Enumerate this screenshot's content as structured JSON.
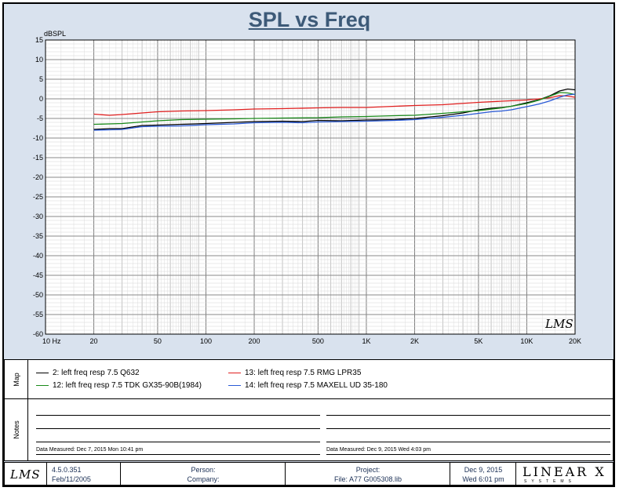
{
  "chart_data": {
    "type": "line",
    "title": "SPL vs Freq",
    "ylabel": "dBSPL",
    "xlabel": "",
    "x_scale": "log",
    "xlim": [
      10,
      20000
    ],
    "ylim": [
      -60,
      15
    ],
    "grid": true,
    "y_ticks": [
      "15",
      "10",
      "5",
      "0",
      "-5",
      "-10",
      "-15",
      "-20",
      "-25",
      "-30",
      "-35",
      "-40",
      "-45",
      "-50",
      "-55",
      "-60"
    ],
    "x_ticks": [
      {
        "value": 10,
        "label": "10  Hz"
      },
      {
        "value": 20,
        "label": "20"
      },
      {
        "value": 50,
        "label": "50"
      },
      {
        "value": 100,
        "label": "100"
      },
      {
        "value": 200,
        "label": "200"
      },
      {
        "value": 500,
        "label": "500"
      },
      {
        "value": 1000,
        "label": "1K"
      },
      {
        "value": 2000,
        "label": "2K"
      },
      {
        "value": 5000,
        "label": "5K"
      },
      {
        "value": 10000,
        "label": "10K"
      },
      {
        "value": 20000,
        "label": "20K"
      }
    ],
    "watermark": "LMS",
    "series": [
      {
        "name": "2: left freq resp 7.5  Q632",
        "color": "#000000",
        "x": [
          20,
          25,
          30,
          40,
          50,
          70,
          100,
          150,
          200,
          300,
          400,
          500,
          700,
          1000,
          1500,
          2000,
          3000,
          4000,
          5000,
          6000,
          7000,
          8000,
          10000,
          12000,
          14000,
          16000,
          18000,
          20000
        ],
        "y": [
          -7.8,
          -7.6,
          -7.6,
          -6.8,
          -6.7,
          -6.5,
          -6.3,
          -6.0,
          -5.8,
          -5.7,
          -5.8,
          -5.5,
          -5.6,
          -5.4,
          -5.3,
          -5.0,
          -4.3,
          -3.6,
          -2.8,
          -2.4,
          -2.2,
          -1.9,
          -1.0,
          -0.2,
          0.8,
          2.0,
          2.5,
          2.3
        ]
      },
      {
        "name": "13: left freq resp 7.5  RMG LPR35",
        "color": "#e02020",
        "x": [
          20,
          25,
          30,
          40,
          50,
          70,
          100,
          150,
          200,
          300,
          500,
          700,
          1000,
          1500,
          2000,
          3000,
          5000,
          7000,
          10000,
          12000,
          14000,
          16000,
          18000,
          20000
        ],
        "y": [
          -3.9,
          -4.2,
          -4.0,
          -3.6,
          -3.3,
          -3.1,
          -3.0,
          -2.8,
          -2.6,
          -2.5,
          -2.3,
          -2.2,
          -2.2,
          -1.9,
          -1.7,
          -1.5,
          -0.9,
          -0.6,
          -0.3,
          0.0,
          0.3,
          0.8,
          0.7,
          0.4
        ]
      },
      {
        "name": "12: left freq resp 7.5  TDK GX35-90B(1984)",
        "color": "#1a8a1a",
        "x": [
          20,
          30,
          40,
          50,
          70,
          100,
          150,
          200,
          300,
          500,
          700,
          1000,
          1500,
          2000,
          3000,
          5000,
          7000,
          10000,
          12000,
          14000,
          16000,
          18000,
          20000
        ],
        "y": [
          -6.5,
          -6.3,
          -5.9,
          -5.6,
          -5.3,
          -5.2,
          -5.1,
          -5.0,
          -4.9,
          -4.8,
          -4.6,
          -4.5,
          -4.3,
          -4.2,
          -3.7,
          -3.0,
          -2.3,
          -1.2,
          -0.3,
          0.7,
          1.6,
          1.5,
          1.1
        ]
      },
      {
        "name": "14: left freq resp 7.5  MAXELL UD 35-180",
        "color": "#2a5ad6",
        "x": [
          20,
          25,
          30,
          40,
          50,
          70,
          100,
          150,
          200,
          300,
          400,
          500,
          700,
          1000,
          1500,
          2000,
          3000,
          4000,
          5000,
          6000,
          7000,
          8000,
          10000,
          12000,
          14000,
          16000,
          18000,
          20000
        ],
        "y": [
          -8.0,
          -7.9,
          -7.8,
          -7.1,
          -7.0,
          -6.9,
          -6.6,
          -6.4,
          -6.1,
          -6.0,
          -6.1,
          -5.9,
          -5.8,
          -5.7,
          -5.5,
          -5.3,
          -4.7,
          -4.2,
          -3.7,
          -3.3,
          -3.1,
          -2.8,
          -2.0,
          -1.3,
          -0.5,
          0.4,
          1.0,
          1.2
        ]
      }
    ]
  },
  "legend": {
    "map_label": "Map",
    "items": [
      {
        "label": "2: left freq resp 7.5  Q632",
        "color": "#000000"
      },
      {
        "label": "12: left freq resp 7.5  TDK GX35-90B(1984)",
        "color": "#1a8a1a"
      },
      {
        "label": "13: left freq resp 7.5  RMG LPR35",
        "color": "#e02020"
      },
      {
        "label": "14: left freq resp 7.5  MAXELL UD 35-180",
        "color": "#2a5ad6"
      }
    ]
  },
  "notes": {
    "label": "Notes",
    "date_left": "Data Measured:  Dec 7, 2015  Mon 10:41 pm",
    "date_right": "Data Measured:  Dec 9, 2015  Wed  4:03 pm"
  },
  "footer": {
    "logo": "LMS",
    "version": "4.5.0.351",
    "version_date": "Feb/11/2005",
    "person_label": "Person:",
    "company_label": "Company:",
    "project_label": "Project:",
    "file_label": "File: A77 G005308.lib",
    "date": "Dec  9, 2015",
    "time": "Wed  6:01 pm",
    "brand": "LINEAR X",
    "brand_sub": "SYSTEMS"
  }
}
